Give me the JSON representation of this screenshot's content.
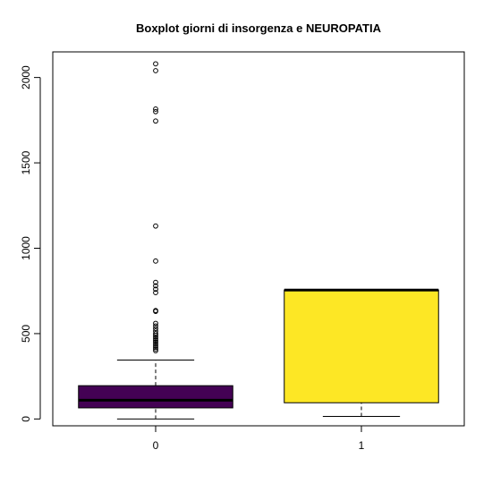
{
  "chart_data": {
    "type": "boxplot",
    "title": "Boxplot giorni di insorgenza e NEUROPATIA",
    "xlabel": "",
    "ylabel": "",
    "categories": [
      "0",
      "1"
    ],
    "ylim": [
      -40,
      2150
    ],
    "yticks": [
      0,
      500,
      1000,
      1500,
      2000
    ],
    "grid": false,
    "boxes": [
      {
        "category": "0",
        "color": "#440154",
        "whisker_low": 0,
        "q1": 65,
        "median": 110,
        "q3": 195,
        "whisker_high": 345,
        "outliers": [
          2080,
          2040,
          1815,
          1800,
          1745,
          1130,
          925,
          800,
          780,
          760,
          740,
          635,
          630,
          560,
          545,
          530,
          515,
          500,
          490,
          480,
          470,
          460,
          450,
          440,
          430,
          420,
          410,
          400
        ]
      },
      {
        "category": "1",
        "color": "#FDE725",
        "whisker_low": 15,
        "q1": 95,
        "median": 755,
        "q3": 755,
        "whisker_high": 755,
        "outliers": []
      }
    ]
  }
}
